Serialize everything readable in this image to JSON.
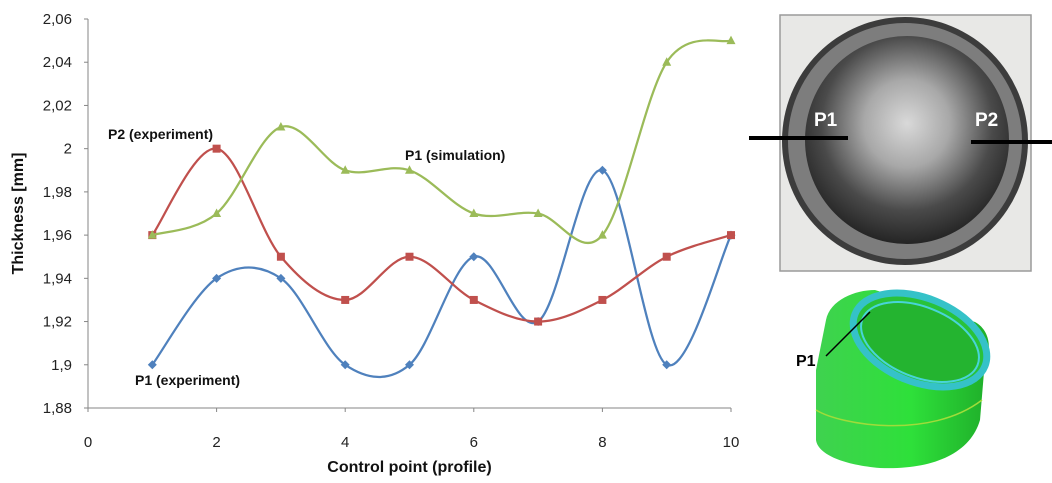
{
  "chart_data": {
    "type": "line",
    "xlabel": "Control point (profile)",
    "ylabel": "Thickness [mm]",
    "xlim": [
      0,
      10
    ],
    "ylim": [
      1.88,
      2.06
    ],
    "x_ticks": [
      "0",
      "2",
      "4",
      "6",
      "8",
      "10"
    ],
    "y_ticks": [
      "1,88",
      "1,9",
      "1,92",
      "1,94",
      "1,96",
      "1,98",
      "2",
      "2,02",
      "2,04",
      "2,06"
    ],
    "grid": false,
    "x": [
      1,
      2,
      3,
      4,
      5,
      6,
      7,
      8,
      9,
      10
    ],
    "series": [
      {
        "name": "P1 (experiment)",
        "color": "#4f81bd",
        "marker": "diamond",
        "values": [
          1.9,
          1.94,
          1.94,
          1.9,
          1.9,
          1.95,
          1.92,
          1.99,
          1.9,
          1.96
        ]
      },
      {
        "name": "P2 (experiment)",
        "color": "#c0504d",
        "marker": "square",
        "values": [
          1.96,
          2.0,
          1.95,
          1.93,
          1.95,
          1.93,
          1.92,
          1.93,
          1.95,
          1.96
        ]
      },
      {
        "name": "P1 (simulation)",
        "color": "#9bbb59",
        "marker": "triangle",
        "values": [
          1.96,
          1.97,
          2.01,
          1.99,
          1.99,
          1.97,
          1.97,
          1.96,
          2.04,
          2.05
        ]
      }
    ]
  },
  "photo": {
    "labels": [
      "P1",
      "P2"
    ]
  },
  "model": {
    "label": "P1"
  }
}
